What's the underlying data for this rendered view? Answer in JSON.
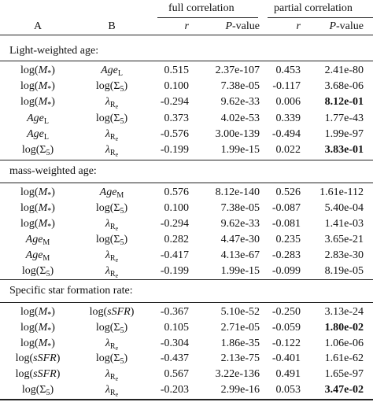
{
  "header": {
    "group_full": "full correlation",
    "group_partial": "partial correlation",
    "col_a": "A",
    "col_b": "B",
    "r": "r",
    "p_letter": "P",
    "p_suffix": "-value"
  },
  "sections": [
    {
      "title": "Light-weighted age:",
      "rows": [
        {
          "a": "log(M*)",
          "b": "Age_L",
          "r_full": "0.515",
          "p_full": "2.37e-107",
          "r_partial": "0.453",
          "p_partial": "2.41e-80",
          "p_partial_bold": false
        },
        {
          "a": "log(M*)",
          "b": "log(Σ5)",
          "r_full": "0.100",
          "p_full": "7.38e-05",
          "r_partial": "-0.117",
          "p_partial": "3.68e-06",
          "p_partial_bold": false
        },
        {
          "a": "log(M*)",
          "b": "λ_Re",
          "r_full": "-0.294",
          "p_full": "9.62e-33",
          "r_partial": "0.006",
          "p_partial": "8.12e-01",
          "p_partial_bold": true
        },
        {
          "a": "Age_L",
          "b": "log(Σ5)",
          "r_full": "0.373",
          "p_full": "4.02e-53",
          "r_partial": "0.339",
          "p_partial": "1.77e-43",
          "p_partial_bold": false
        },
        {
          "a": "Age_L",
          "b": "λ_Re",
          "r_full": "-0.576",
          "p_full": "3.00e-139",
          "r_partial": "-0.494",
          "p_partial": "1.99e-97",
          "p_partial_bold": false
        },
        {
          "a": "log(Σ5)",
          "b": "λ_Re",
          "r_full": "-0.199",
          "p_full": "1.99e-15",
          "r_partial": "0.022",
          "p_partial": "3.83e-01",
          "p_partial_bold": true
        }
      ]
    },
    {
      "title": "mass-weighted age:",
      "rows": [
        {
          "a": "log(M*)",
          "b": "Age_M",
          "r_full": "0.576",
          "p_full": "8.12e-140",
          "r_partial": "0.526",
          "p_partial": "1.61e-112",
          "p_partial_bold": false
        },
        {
          "a": "log(M*)",
          "b": "log(Σ5)",
          "r_full": "0.100",
          "p_full": "7.38e-05",
          "r_partial": "-0.087",
          "p_partial": "5.40e-04",
          "p_partial_bold": false
        },
        {
          "a": "log(M*)",
          "b": "λ_Re",
          "r_full": "-0.294",
          "p_full": "9.62e-33",
          "r_partial": "-0.081",
          "p_partial": "1.41e-03",
          "p_partial_bold": false
        },
        {
          "a": "Age_M",
          "b": "log(Σ5)",
          "r_full": "0.282",
          "p_full": "4.47e-30",
          "r_partial": "0.235",
          "p_partial": "3.65e-21",
          "p_partial_bold": false
        },
        {
          "a": "Age_M",
          "b": "λ_Re",
          "r_full": "-0.417",
          "p_full": "4.13e-67",
          "r_partial": "-0.283",
          "p_partial": "2.83e-30",
          "p_partial_bold": false
        },
        {
          "a": "log(Σ5)",
          "b": "λ_Re",
          "r_full": "-0.199",
          "p_full": "1.99e-15",
          "r_partial": "-0.099",
          "p_partial": "8.19e-05",
          "p_partial_bold": false
        }
      ]
    },
    {
      "title": "Specific star formation rate:",
      "rows": [
        {
          "a": "log(M*)",
          "b": "log(sSFR)",
          "r_full": "-0.367",
          "p_full": "5.10e-52",
          "r_partial": "-0.250",
          "p_partial": "3.13e-24",
          "p_partial_bold": false
        },
        {
          "a": "log(M*)",
          "b": "log(Σ5)",
          "r_full": "0.105",
          "p_full": "2.71e-05",
          "r_partial": "-0.059",
          "p_partial": "1.80e-02",
          "p_partial_bold": true
        },
        {
          "a": "log(M*)",
          "b": "λ_Re",
          "r_full": "-0.304",
          "p_full": "1.86e-35",
          "r_partial": "-0.122",
          "p_partial": "1.06e-06",
          "p_partial_bold": false
        },
        {
          "a": "log(sSFR)",
          "b": "log(Σ5)",
          "r_full": "-0.437",
          "p_full": "2.13e-75",
          "r_partial": "-0.401",
          "p_partial": "1.61e-62",
          "p_partial_bold": false
        },
        {
          "a": "log(sSFR)",
          "b": "λ_Re",
          "r_full": "0.567",
          "p_full": "3.22e-136",
          "r_partial": "0.491",
          "p_partial": "1.65e-97",
          "p_partial_bold": false
        },
        {
          "a": "log(Σ5)",
          "b": "λ_Re",
          "r_full": "-0.203",
          "p_full": "2.99e-16",
          "r_partial": "0.053",
          "p_partial": "3.47e-02",
          "p_partial_bold": true
        }
      ]
    }
  ]
}
